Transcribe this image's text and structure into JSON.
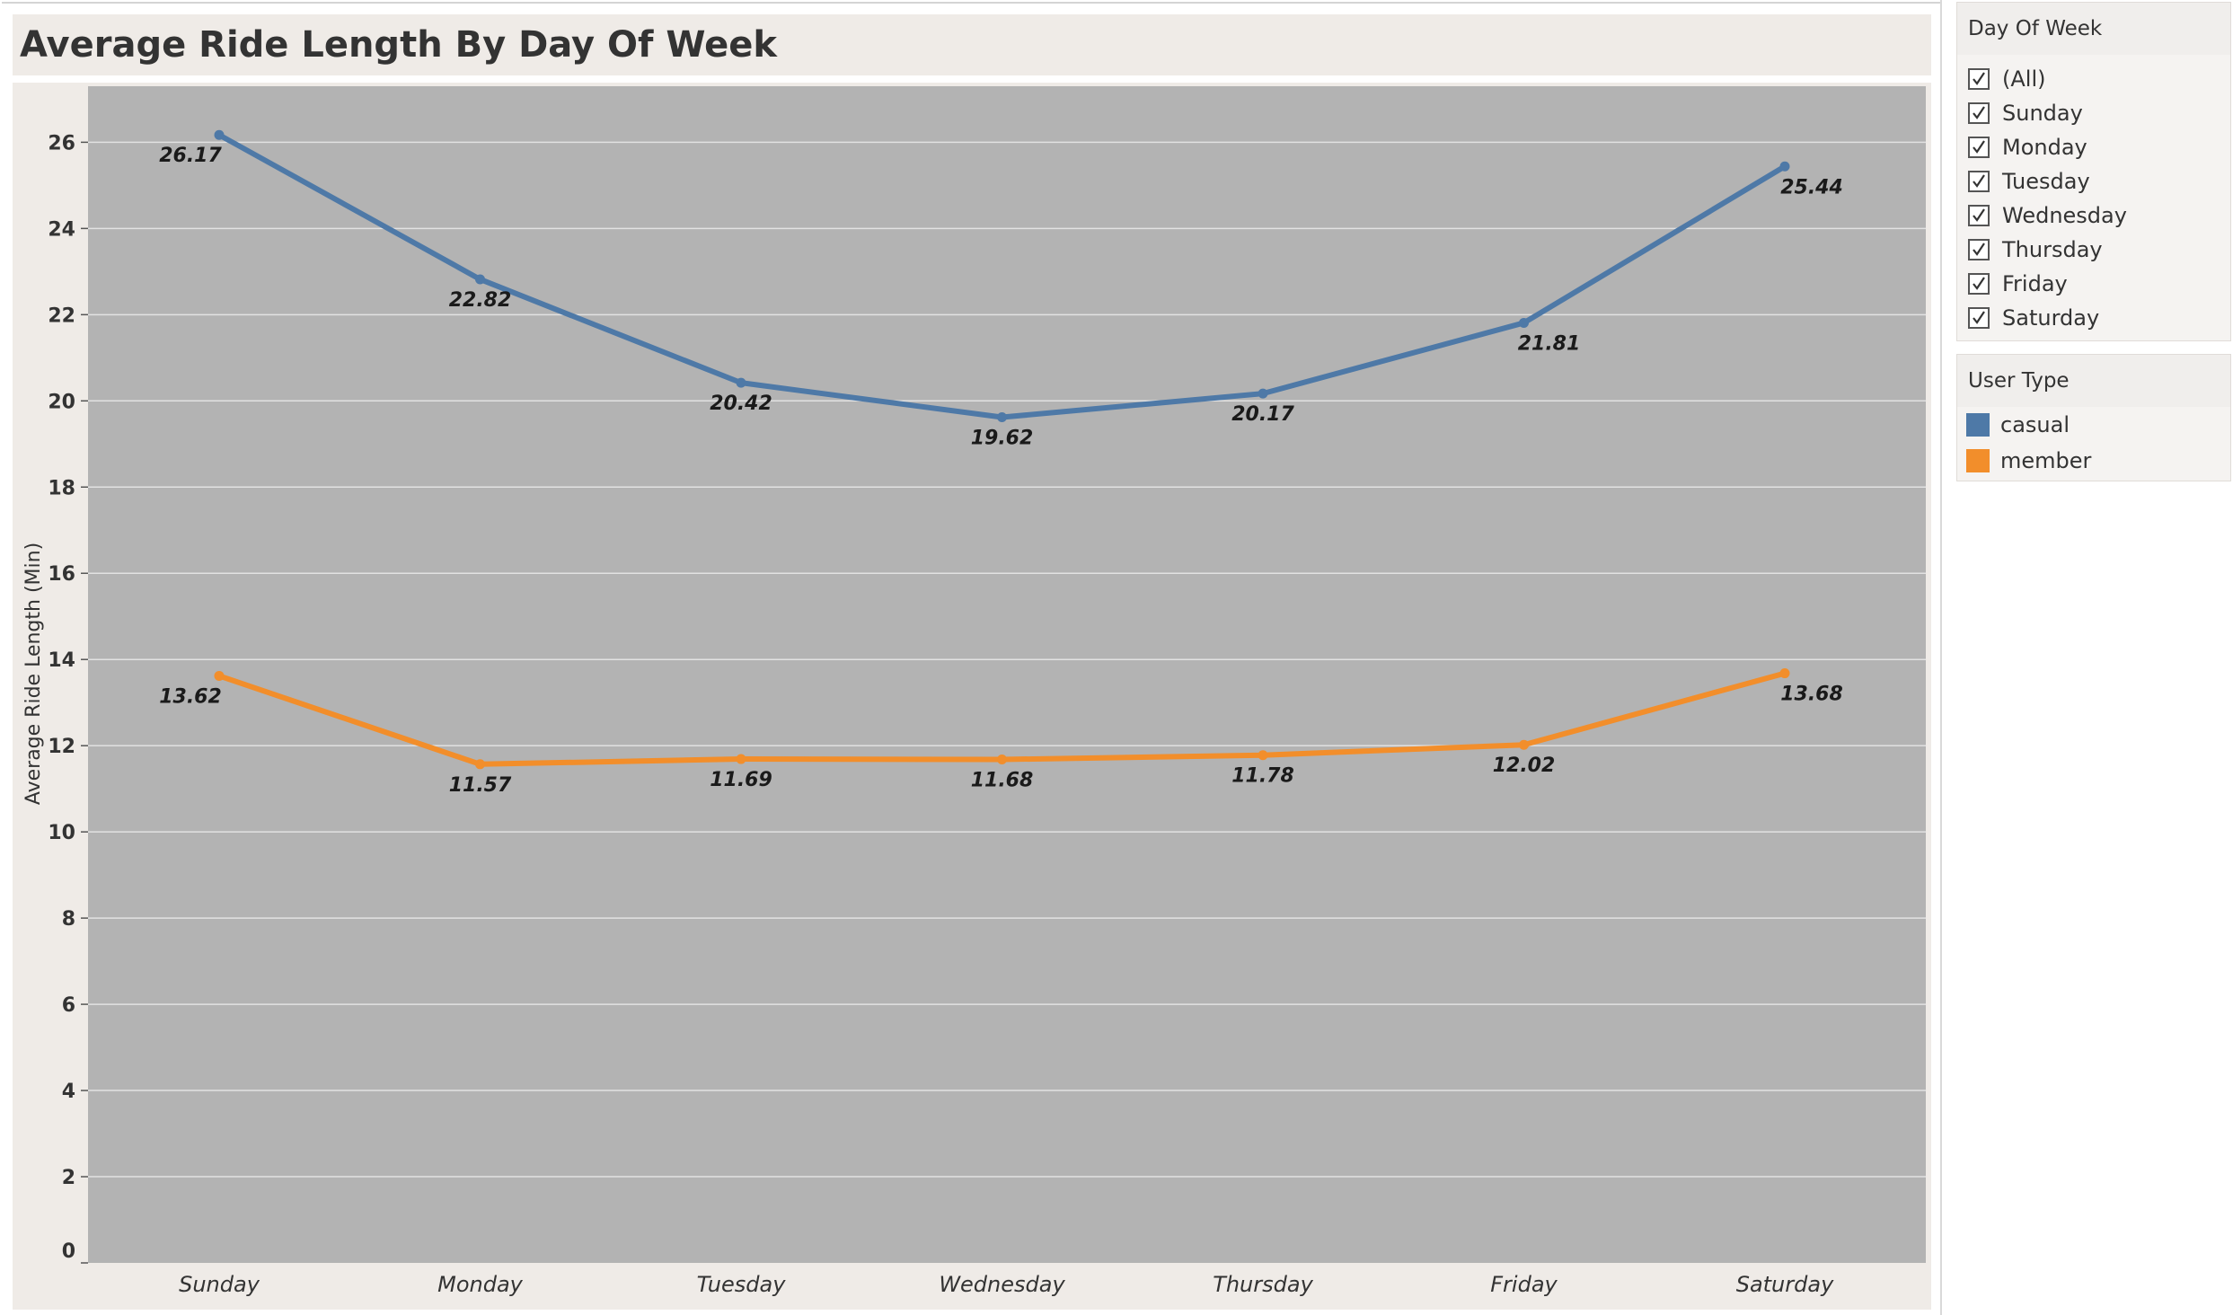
{
  "title": "Average Ride Length By Day Of Week",
  "filter": {
    "title": "Day Of Week",
    "items": [
      {
        "label": "(All)",
        "checked": true
      },
      {
        "label": "Sunday",
        "checked": true
      },
      {
        "label": "Monday",
        "checked": true
      },
      {
        "label": "Tuesday",
        "checked": true
      },
      {
        "label": "Wednesday",
        "checked": true
      },
      {
        "label": "Thursday",
        "checked": true
      },
      {
        "label": "Friday",
        "checked": true
      },
      {
        "label": "Saturday",
        "checked": true
      }
    ]
  },
  "legend": {
    "title": "User Type",
    "items": [
      {
        "label": "casual",
        "color": "#4e79a7"
      },
      {
        "label": "member",
        "color": "#f28e2b"
      }
    ]
  },
  "chart_data": {
    "type": "line",
    "title": "Average Ride Length By Day Of Week",
    "xlabel": "",
    "ylabel": "Average Ride Length (Min)",
    "categories": [
      "Sunday",
      "Monday",
      "Tuesday",
      "Wednesday",
      "Thursday",
      "Friday",
      "Saturday"
    ],
    "series": [
      {
        "name": "casual",
        "color": "#4e79a7",
        "values": [
          26.17,
          22.82,
          20.42,
          19.62,
          20.17,
          21.81,
          25.44
        ],
        "labels": [
          "26.17",
          "22.82",
          "20.42",
          "19.62",
          "20.17",
          "21.81",
          "25.44"
        ]
      },
      {
        "name": "member",
        "color": "#f28e2b",
        "values": [
          13.62,
          11.57,
          11.69,
          11.68,
          11.78,
          12.02,
          13.68
        ],
        "labels": [
          "13.62",
          "11.57",
          "11.69",
          "11.68",
          "11.78",
          "12.02",
          "13.68"
        ]
      }
    ],
    "ylim": [
      0,
      27.3
    ],
    "yticks": [
      0,
      2,
      4,
      6,
      8,
      10,
      12,
      14,
      16,
      18,
      20,
      22,
      24,
      26
    ],
    "grid": true,
    "plot_background": "#b3b3b3",
    "legend_position": "right"
  }
}
